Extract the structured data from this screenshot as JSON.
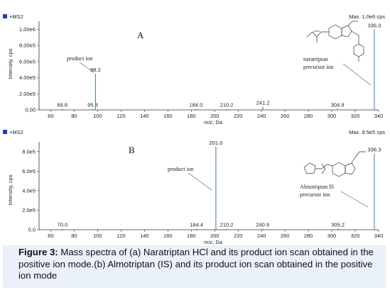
{
  "caption": {
    "label": "Figure 3:",
    "text": " Mass spectra of (a) Naratriptan HCl and its product ion scan obtained in the positive ion mode.(b) Almotriptan (IS) and its product ion scan obtained in the positive ion mode"
  },
  "colors": {
    "peak": "#4a7fd6",
    "axis": "#333333",
    "marker": "#1a3fd0",
    "caption_bg": "#eaf1f8"
  },
  "chart_data": [
    {
      "type": "bar",
      "panel_letter": "A",
      "scan_label": "+MS2",
      "max_label": "Max. 1.0e6 cps",
      "ylabel": "Intensity, cps",
      "xlabel": "m/z, Da",
      "xlim": [
        50,
        340
      ],
      "ylim": [
        0,
        1100000
      ],
      "x_ticks": [
        60,
        80,
        100,
        120,
        140,
        160,
        180,
        200,
        220,
        240,
        260,
        280,
        300,
        320,
        340
      ],
      "y_ticks": [
        {
          "value": 0,
          "label": "0.00"
        },
        {
          "value": 200000,
          "label": "2.00e5"
        },
        {
          "value": 400000,
          "label": "4.00e5"
        },
        {
          "value": 600000,
          "label": "6.00e5"
        },
        {
          "value": 800000,
          "label": "8.00e5"
        },
        {
          "value": 1000000,
          "label": "1.00e6"
        }
      ],
      "peaks": [
        {
          "x": 69.8,
          "y": 0,
          "label": "69.8"
        },
        {
          "x": 95.8,
          "y": 0,
          "label": "95.8"
        },
        {
          "x": 98.2,
          "y": 450000,
          "label": "98.2"
        },
        {
          "x": 184.0,
          "y": 0,
          "label": "184.0"
        },
        {
          "x": 210.2,
          "y": 0,
          "label": "210.2"
        },
        {
          "x": 241.2,
          "y": 40000,
          "label": "241.2"
        },
        {
          "x": 304.9,
          "y": 0,
          "label": "304.9"
        },
        {
          "x": 336.3,
          "y": 1000000,
          "label": "336.3"
        }
      ],
      "annotations": [
        "product ion",
        "naratriptan",
        "precursor ion"
      ]
    },
    {
      "type": "bar",
      "panel_letter": "B",
      "scan_label": "+MS2",
      "max_label": "Max. 8.5e5 cps",
      "ylabel": "Intensity, cps",
      "xlabel": "m/z, Da",
      "xlim": [
        50,
        340
      ],
      "ylim": [
        0,
        900000
      ],
      "x_ticks": [
        60,
        80,
        100,
        120,
        140,
        160,
        180,
        200,
        220,
        240,
        260,
        280,
        300,
        320,
        340
      ],
      "y_ticks": [
        {
          "value": 0,
          "label": "0.0"
        },
        {
          "value": 200000,
          "label": "2.0e5"
        },
        {
          "value": 400000,
          "label": "4.0e5"
        },
        {
          "value": 600000,
          "label": "6.0e5"
        },
        {
          "value": 800000,
          "label": "8.0e5"
        }
      ],
      "peaks": [
        {
          "x": 70.0,
          "y": 0,
          "label": "70.0"
        },
        {
          "x": 184.4,
          "y": 0,
          "label": "184.4"
        },
        {
          "x": 201.0,
          "y": 850000,
          "label": "201.0"
        },
        {
          "x": 210.2,
          "y": 0,
          "label": "210.2"
        },
        {
          "x": 240.9,
          "y": 0,
          "label": "240.9"
        },
        {
          "x": 305.2,
          "y": 0,
          "label": "305.2"
        },
        {
          "x": 336.3,
          "y": 780000,
          "label": "336.3"
        }
      ],
      "annotations": [
        "product ion",
        "Almotriptan IS",
        "precursor ion"
      ]
    }
  ]
}
